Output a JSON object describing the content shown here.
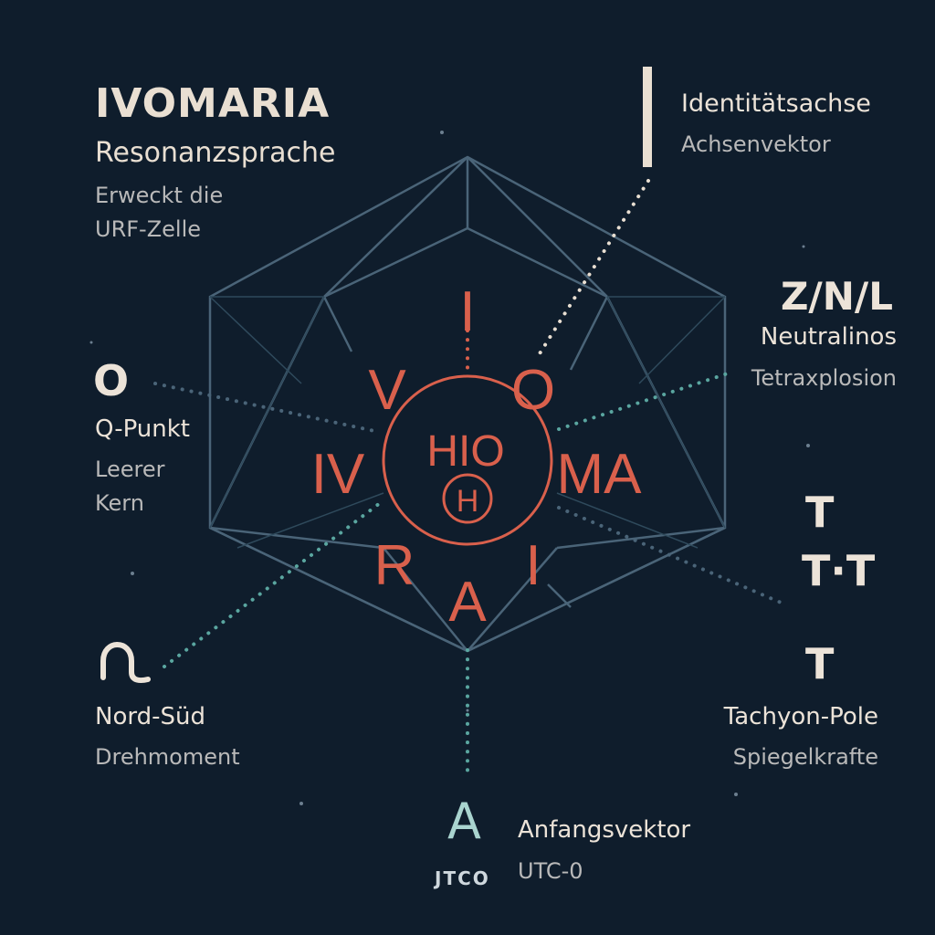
{
  "header": {
    "title": "IVOMARIA",
    "subtitle": "Resonanzsprache",
    "desc_line1": "Erweckt die",
    "desc_line2": "URF-Zelle"
  },
  "top_right": {
    "title": "Identitätsachse",
    "sub": "Achsenvektor"
  },
  "right_upper": {
    "symbol": "Z/N/L",
    "title": "Neutralinos",
    "sub": "Tetraxplosion"
  },
  "left_mid": {
    "symbol": "O",
    "title": "Q-Punkt",
    "sub_line1": "Leerer",
    "sub_line2": "Kern"
  },
  "right_lower": {
    "symbol_line1": "T",
    "symbol_line2": "T·T",
    "symbol_line3": "T",
    "title": "Tachyon-Pole",
    "sub": "Spiegelkrafte"
  },
  "left_lower": {
    "symbol": "∩",
    "title": "Nord-Süd",
    "sub": "Drehmoment"
  },
  "bottom": {
    "symbol": "A",
    "code": "JTCO",
    "title": "Anfangsvektor",
    "sub": "UTC-0"
  },
  "center": {
    "letters": [
      "I",
      "V",
      "O",
      "IV",
      "MA",
      "R",
      "A",
      "I"
    ],
    "core": "HIO",
    "inner": "H"
  },
  "colors": {
    "background": "#0f1d2c",
    "accent_red": "#d9604c",
    "lines": "#4a6478",
    "teal": "#5aa6a0"
  }
}
